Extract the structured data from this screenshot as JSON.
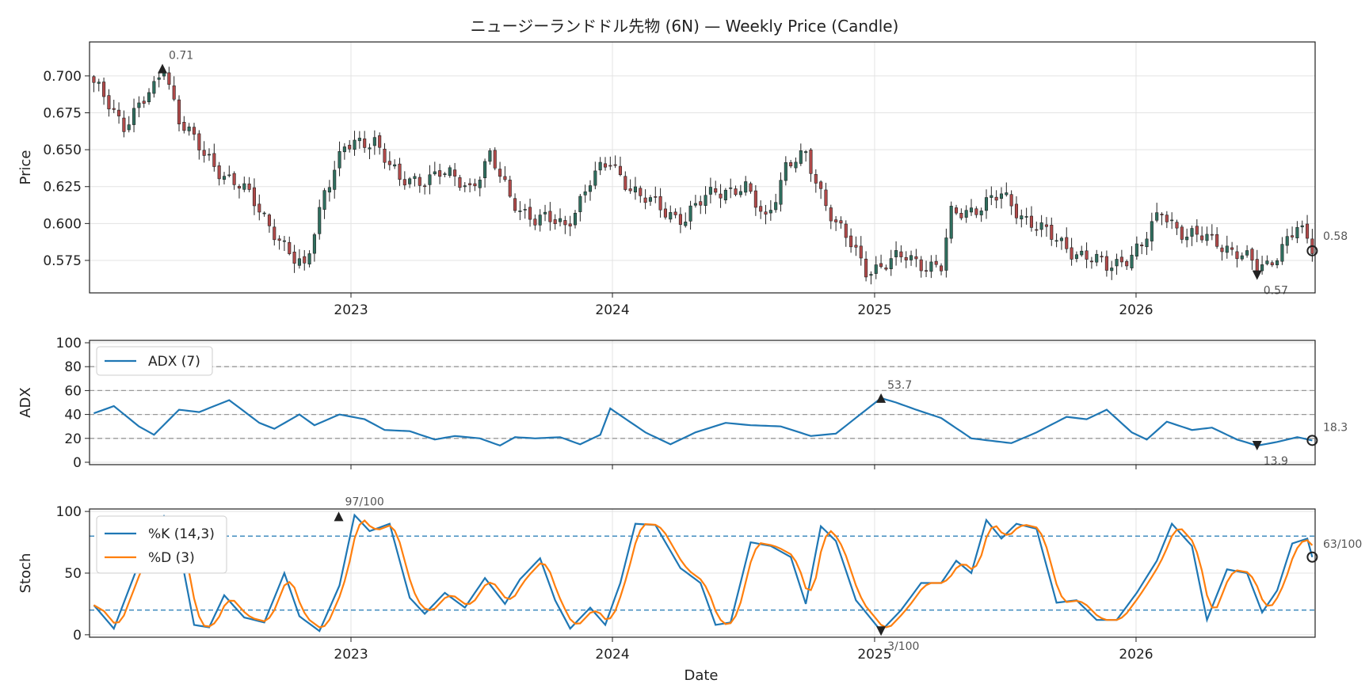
{
  "title": "ニュージーランドドル先物 (6N) — Weekly Price (Candle)",
  "xlabel": "Date",
  "chart_data": [
    {
      "type": "candlestick",
      "ylabel": "Price",
      "ylim": [
        0.553,
        0.723
      ],
      "yticks": [
        "0.575",
        "0.600",
        "0.625",
        "0.650",
        "0.675",
        "0.700"
      ],
      "xticks": [
        "2023",
        "2024",
        "2025",
        "2026"
      ],
      "up_color": "#2f6f5f",
      "down_color": "#b24a4a",
      "annotations": {
        "max": "0.71",
        "min": "0.57",
        "last": "0.58"
      },
      "close_anchors": [
        [
          "2022-01-07",
          0.693
        ],
        [
          "2022-02-18",
          0.668
        ],
        [
          "2022-04-01",
          0.69
        ],
        [
          "2022-04-15",
          0.707
        ],
        [
          "2022-05-06",
          0.672
        ],
        [
          "2022-06-10",
          0.645
        ],
        [
          "2022-07-29",
          0.626
        ],
        [
          "2022-09-16",
          0.596
        ],
        [
          "2022-10-14",
          0.574
        ],
        [
          "2022-10-28",
          0.568
        ],
        [
          "2022-11-25",
          0.624
        ],
        [
          "2022-12-23",
          0.65
        ],
        [
          "2023-02-03",
          0.658
        ],
        [
          "2023-03-10",
          0.627
        ],
        [
          "2023-05-05",
          0.634
        ],
        [
          "2023-06-16",
          0.625
        ],
        [
          "2023-07-14",
          0.645
        ],
        [
          "2023-08-11",
          0.617
        ],
        [
          "2023-09-15",
          0.603
        ],
        [
          "2023-10-27",
          0.599
        ],
        [
          "2023-12-01",
          0.628
        ],
        [
          "2023-12-29",
          0.642
        ],
        [
          "2024-02-09",
          0.617
        ],
        [
          "2024-04-12",
          0.603
        ],
        [
          "2024-05-24",
          0.624
        ],
        [
          "2024-07-05",
          0.622
        ],
        [
          "2024-08-02",
          0.604
        ],
        [
          "2024-08-30",
          0.638
        ],
        [
          "2024-09-27",
          0.645
        ],
        [
          "2024-11-08",
          0.6
        ],
        [
          "2024-12-20",
          0.569
        ],
        [
          "2025-02-14",
          0.577
        ],
        [
          "2025-04-04",
          0.57
        ],
        [
          "2025-04-18",
          0.605
        ],
        [
          "2025-06-27",
          0.618
        ],
        [
          "2025-09-05",
          0.59
        ],
        [
          "2025-11-21",
          0.57
        ],
        [
          "2026-01-09",
          0.584
        ],
        [
          "2026-02-06",
          0.609
        ],
        [
          "2026-03-13",
          0.591
        ],
        [
          "2026-04-24",
          0.589
        ],
        [
          "2026-06-19",
          0.57
        ],
        [
          "2026-07-03",
          0.573
        ],
        [
          "2026-08-14",
          0.596
        ],
        [
          "2026-09-04",
          0.584
        ]
      ]
    },
    {
      "type": "line",
      "ylabel": "ADX",
      "ylim": [
        -2,
        102
      ],
      "yticks": [
        "0",
        "20",
        "40",
        "60",
        "80",
        "100"
      ],
      "hlines": [
        20,
        40,
        60,
        80
      ],
      "series": [
        {
          "name": "ADX (7)",
          "color": "#1f77b4",
          "anchors": [
            [
              "2022-01-07",
              41
            ],
            [
              "2022-02-04",
              47
            ],
            [
              "2022-03-11",
              30
            ],
            [
              "2022-04-01",
              23
            ],
            [
              "2022-05-06",
              44
            ],
            [
              "2022-06-03",
              42
            ],
            [
              "2022-07-15",
              52
            ],
            [
              "2022-08-26",
              33
            ],
            [
              "2022-09-16",
              28
            ],
            [
              "2022-10-21",
              40
            ],
            [
              "2022-11-11",
              31
            ],
            [
              "2022-12-16",
              40
            ],
            [
              "2023-01-20",
              36
            ],
            [
              "2023-02-17",
              27
            ],
            [
              "2023-03-24",
              26
            ],
            [
              "2023-04-28",
              19
            ],
            [
              "2023-05-26",
              22
            ],
            [
              "2023-06-30",
              20
            ],
            [
              "2023-07-28",
              14
            ],
            [
              "2023-08-18",
              21
            ],
            [
              "2023-09-15",
              20
            ],
            [
              "2023-10-20",
              21
            ],
            [
              "2023-11-17",
              15
            ],
            [
              "2023-12-15",
              23
            ],
            [
              "2023-12-29",
              45
            ],
            [
              "2024-02-16",
              25
            ],
            [
              "2024-03-22",
              15
            ],
            [
              "2024-04-26",
              25
            ],
            [
              "2024-06-07",
              33
            ],
            [
              "2024-07-12",
              31
            ],
            [
              "2024-08-23",
              30
            ],
            [
              "2024-10-04",
              22
            ],
            [
              "2024-11-08",
              24
            ],
            [
              "2025-01-10",
              53.7
            ],
            [
              "2025-01-31",
              50
            ],
            [
              "2025-02-28",
              44
            ],
            [
              "2025-04-04",
              37
            ],
            [
              "2025-05-16",
              20
            ],
            [
              "2025-06-13",
              18
            ],
            [
              "2025-07-11",
              16
            ],
            [
              "2025-08-15",
              25
            ],
            [
              "2025-09-26",
              38
            ],
            [
              "2025-10-24",
              36
            ],
            [
              "2025-11-21",
              44
            ],
            [
              "2025-12-26",
              25
            ],
            [
              "2026-01-16",
              19
            ],
            [
              "2026-02-13",
              34
            ],
            [
              "2026-03-20",
              27
            ],
            [
              "2026-04-17",
              29
            ],
            [
              "2026-05-22",
              19
            ],
            [
              "2026-06-19",
              13.9
            ],
            [
              "2026-07-17",
              17
            ],
            [
              "2026-08-14",
              21
            ],
            [
              "2026-09-04",
              18.3
            ]
          ]
        }
      ],
      "annotations": {
        "max": "53.7",
        "min": "13.9",
        "last": "18.3"
      }
    },
    {
      "type": "line",
      "ylabel": "Stoch",
      "ylim": [
        -2,
        102
      ],
      "yticks": [
        "0",
        "50",
        "100"
      ],
      "hlines": [
        20,
        80
      ],
      "series": [
        {
          "name": "%K (14,3)",
          "color": "#1f77b4",
          "anchors": [
            [
              "2022-01-07",
              24
            ],
            [
              "2022-02-04",
              5
            ],
            [
              "2022-03-11",
              58
            ],
            [
              "2022-04-15",
              96
            ],
            [
              "2022-05-06",
              72
            ],
            [
              "2022-05-27",
              8
            ],
            [
              "2022-06-17",
              6
            ],
            [
              "2022-07-08",
              32
            ],
            [
              "2022-08-05",
              14
            ],
            [
              "2022-09-02",
              10
            ],
            [
              "2022-09-30",
              50
            ],
            [
              "2022-10-21",
              15
            ],
            [
              "2022-11-18",
              3
            ],
            [
              "2022-12-16",
              40
            ],
            [
              "2023-01-06",
              97
            ],
            [
              "2023-01-27",
              84
            ],
            [
              "2023-02-24",
              90
            ],
            [
              "2023-03-24",
              30
            ],
            [
              "2023-04-14",
              17
            ],
            [
              "2023-05-12",
              34
            ],
            [
              "2023-06-09",
              22
            ],
            [
              "2023-07-07",
              46
            ],
            [
              "2023-08-04",
              25
            ],
            [
              "2023-08-25",
              45
            ],
            [
              "2023-09-22",
              62
            ],
            [
              "2023-10-13",
              28
            ],
            [
              "2023-11-03",
              5
            ],
            [
              "2023-12-01",
              22
            ],
            [
              "2023-12-22",
              8
            ],
            [
              "2024-01-12",
              42
            ],
            [
              "2024-02-02",
              90
            ],
            [
              "2024-03-01",
              89
            ],
            [
              "2024-04-05",
              54
            ],
            [
              "2024-05-03",
              42
            ],
            [
              "2024-05-24",
              8
            ],
            [
              "2024-06-14",
              10
            ],
            [
              "2024-07-12",
              75
            ],
            [
              "2024-08-09",
              72
            ],
            [
              "2024-09-06",
              63
            ],
            [
              "2024-09-27",
              25
            ],
            [
              "2024-10-18",
              88
            ],
            [
              "2024-11-08",
              76
            ],
            [
              "2024-12-06",
              28
            ],
            [
              "2025-01-10",
              3
            ],
            [
              "2025-02-07",
              20
            ],
            [
              "2025-03-07",
              42
            ],
            [
              "2025-04-04",
              42
            ],
            [
              "2025-04-25",
              60
            ],
            [
              "2025-05-16",
              50
            ],
            [
              "2025-06-06",
              93
            ],
            [
              "2025-06-27",
              78
            ],
            [
              "2025-07-18",
              90
            ],
            [
              "2025-08-15",
              86
            ],
            [
              "2025-09-12",
              26
            ],
            [
              "2025-10-10",
              28
            ],
            [
              "2025-11-07",
              12
            ],
            [
              "2025-12-05",
              12
            ],
            [
              "2026-01-02",
              34
            ],
            [
              "2026-01-30",
              60
            ],
            [
              "2026-02-20",
              90
            ],
            [
              "2026-03-20",
              72
            ],
            [
              "2026-04-10",
              12
            ],
            [
              "2026-05-08",
              53
            ],
            [
              "2026-06-05",
              50
            ],
            [
              "2026-06-26",
              18
            ],
            [
              "2026-07-17",
              36
            ],
            [
              "2026-08-07",
              74
            ],
            [
              "2026-08-28",
              78
            ],
            [
              "2026-09-04",
              63
            ]
          ]
        },
        {
          "name": "%D (3)",
          "color": "#ff7f0e",
          "smooth": 3
        }
      ],
      "annotations": {
        "max": "97/100",
        "min": "3/100",
        "last": "63/100"
      }
    }
  ]
}
